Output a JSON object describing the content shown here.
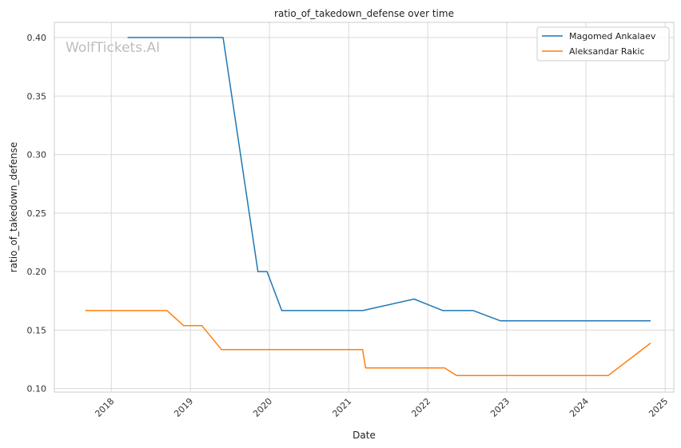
{
  "chart_data": {
    "type": "line",
    "title": "ratio_of_takedown_defense over time",
    "xlabel": "Date",
    "ylabel": "ratio_of_takedown_defense",
    "watermark": "WolfTickets.AI",
    "x_ticks": [
      "2018",
      "2019",
      "2020",
      "2021",
      "2022",
      "2023",
      "2024",
      "2025"
    ],
    "y_ticks": [
      "0.10",
      "0.15",
      "0.20",
      "0.25",
      "0.30",
      "0.35",
      "0.40"
    ],
    "xlim": [
      "2017-04-13",
      "2025-02-10"
    ],
    "ylim": [
      0.097,
      0.413
    ],
    "grid": true,
    "legend_position": "top-right",
    "series": [
      {
        "name": "Magomed Ankalaev",
        "color": "#1f77b4",
        "points": [
          [
            "2018-03-17",
            0.4
          ],
          [
            "2019-06-01",
            0.4
          ],
          [
            "2019-11-09",
            0.2
          ],
          [
            "2019-12-21",
            0.2
          ],
          [
            "2020-02-27",
            0.1667
          ],
          [
            "2021-03-07",
            0.1667
          ],
          [
            "2021-10-30",
            0.1765
          ],
          [
            "2022-03-12",
            0.1667
          ],
          [
            "2022-07-30",
            0.1667
          ],
          [
            "2022-12-03",
            0.1579
          ],
          [
            "2024-10-26",
            0.1579
          ]
        ]
      },
      {
        "name": "Aleksandar Rakic",
        "color": "#ff7f0e",
        "points": [
          [
            "2017-09-02",
            0.1667
          ],
          [
            "2018-09-15",
            0.1667
          ],
          [
            "2018-12-01",
            0.1538
          ],
          [
            "2019-02-23",
            0.1538
          ],
          [
            "2019-05-25",
            0.1333
          ],
          [
            "2021-03-06",
            0.1333
          ],
          [
            "2021-03-20",
            0.1176
          ],
          [
            "2022-03-20",
            0.1176
          ],
          [
            "2022-05-14",
            0.1111
          ],
          [
            "2024-04-13",
            0.1111
          ],
          [
            "2024-10-26",
            0.1389
          ]
        ]
      }
    ]
  }
}
